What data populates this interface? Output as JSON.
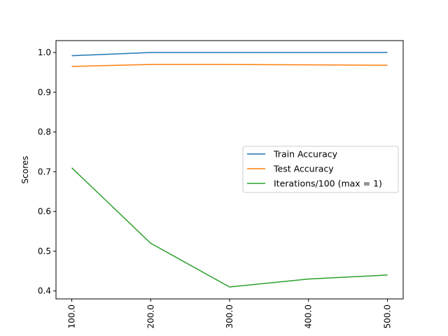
{
  "chart_data": {
    "type": "line",
    "title": "",
    "xlabel": "",
    "ylabel": "Scores",
    "x": [
      100.0,
      200.0,
      300.0,
      400.0,
      500.0
    ],
    "x_tick_labels": [
      "100.0",
      "200.0",
      "300.0",
      "400.0",
      "500.0"
    ],
    "y_tick_labels": [
      "0.4",
      "0.5",
      "0.6",
      "0.7",
      "0.8",
      "0.9",
      "1.0"
    ],
    "y_ticks": [
      0.4,
      0.5,
      0.6,
      0.7,
      0.8,
      0.9,
      1.0
    ],
    "ylim": [
      0.38,
      1.03
    ],
    "xlim": [
      80,
      520
    ],
    "grid": false,
    "legend_position": "center-right",
    "series": [
      {
        "name": "Train Accuracy",
        "color": "#1f77b4",
        "values": [
          0.992,
          1.0,
          1.0,
          1.0,
          1.0
        ]
      },
      {
        "name": "Test Accuracy",
        "color": "#ff7f0e",
        "values": [
          0.965,
          0.97,
          0.97,
          0.969,
          0.968
        ]
      },
      {
        "name": "Iterations/100 (max = 1)",
        "color": "#2ca02c",
        "values": [
          0.71,
          0.52,
          0.41,
          0.43,
          0.44
        ]
      }
    ]
  }
}
